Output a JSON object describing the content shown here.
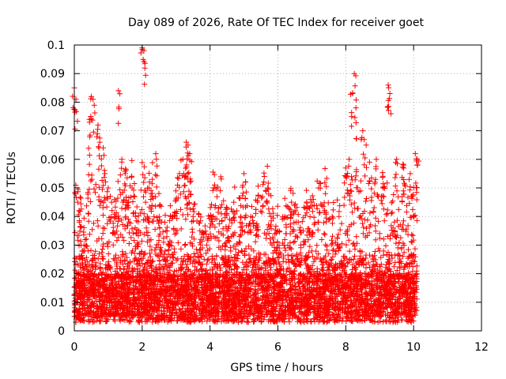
{
  "chart_data": {
    "type": "scatter",
    "title": "Day 089 of 2026, Rate Of TEC Index for receiver goet",
    "xlabel": "GPS time / hours",
    "ylabel": "ROTI / TECUs",
    "xlim": [
      0,
      12
    ],
    "ylim": [
      0,
      0.1
    ],
    "x_ticks": [
      "0",
      "2",
      "4",
      "6",
      "8",
      "10",
      "12"
    ],
    "y_ticks": [
      "0",
      "0.01",
      "0.02",
      "0.03",
      "0.04",
      "0.05",
      "0.06",
      "0.07",
      "0.08",
      "0.09",
      "0.1"
    ],
    "grid": true,
    "marker": "+",
    "color": "#ff0000",
    "data_range_x": [
      0,
      10.1
    ],
    "x": [
      0.0,
      0.05,
      0.1,
      0.15,
      0.2,
      0.3,
      0.45,
      0.5,
      0.55,
      0.7,
      0.75,
      0.85,
      0.9,
      1.0,
      1.1,
      1.2,
      1.3,
      1.4,
      1.5,
      1.6,
      1.7,
      1.8,
      1.9,
      2.0,
      2.05,
      2.1,
      2.2,
      2.3,
      2.4,
      2.5,
      2.7,
      2.9,
      3.1,
      3.2,
      3.3,
      3.35,
      3.4,
      3.5,
      3.7,
      3.9,
      4.1,
      4.3,
      4.5,
      4.7,
      4.9,
      5.0,
      5.2,
      5.4,
      5.6,
      5.7,
      5.8,
      6.0,
      6.2,
      6.4,
      6.6,
      6.8,
      7.0,
      7.2,
      7.4,
      7.6,
      7.8,
      8.0,
      8.1,
      8.2,
      8.25,
      8.3,
      8.5,
      8.6,
      8.7,
      8.9,
      9.1,
      9.25,
      9.3,
      9.5,
      9.7,
      9.9,
      10.05,
      10.1
    ],
    "y": [
      0.085,
      0.081,
      0.045,
      0.038,
      0.03,
      0.028,
      0.073,
      0.082,
      0.081,
      0.072,
      0.066,
      0.064,
      0.055,
      0.05,
      0.045,
      0.04,
      0.084,
      0.06,
      0.055,
      0.045,
      0.05,
      0.04,
      0.035,
      0.099,
      0.098,
      0.045,
      0.05,
      0.053,
      0.062,
      0.04,
      0.035,
      0.04,
      0.055,
      0.06,
      0.066,
      0.065,
      0.062,
      0.04,
      0.035,
      0.03,
      0.05,
      0.049,
      0.035,
      0.045,
      0.04,
      0.055,
      0.04,
      0.045,
      0.054,
      0.05,
      0.04,
      0.035,
      0.04,
      0.045,
      0.038,
      0.043,
      0.045,
      0.05,
      0.048,
      0.04,
      0.04,
      0.057,
      0.06,
      0.083,
      0.09,
      0.078,
      0.07,
      0.065,
      0.059,
      0.06,
      0.05,
      0.086,
      0.083,
      0.06,
      0.058,
      0.055,
      0.062,
      0.06
    ]
  }
}
